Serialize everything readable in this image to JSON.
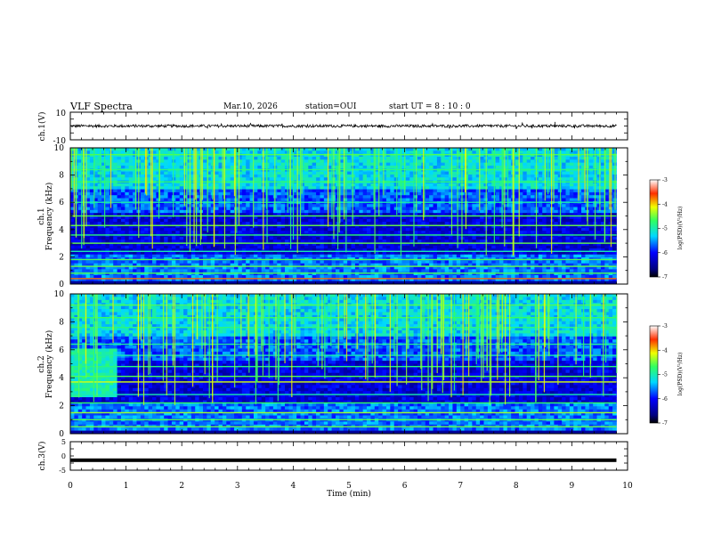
{
  "header": {
    "title": "VLF Spectra",
    "date": "Mar.10, 2026",
    "station": "station=OUI",
    "start": "start  UT  =   8  : 10 : 0"
  },
  "chart_data": [
    {
      "type": "line",
      "name": "ch1-waveform",
      "ylabel": "ch.1(V)",
      "ylim": [
        -10,
        10
      ],
      "yticks": [
        10,
        -10
      ],
      "xlim": [
        0,
        10
      ],
      "baseline": 0,
      "noise_amplitude": 1,
      "color": "#000000"
    },
    {
      "type": "heatmap",
      "name": "ch1-spectrogram",
      "ylabel": "ch.1",
      "ylabel2": "Frequency  (kHz)",
      "ylim": [
        0,
        10
      ],
      "yticks": [
        0,
        2,
        4,
        6,
        8,
        10
      ],
      "xlim": [
        0,
        10
      ],
      "colorbar": {
        "label": "log(PSD)(V²/Hz)",
        "range": [
          -7,
          -3
        ],
        "ticks": [
          -3,
          -4,
          -5,
          -6,
          -7
        ]
      }
    },
    {
      "type": "heatmap",
      "name": "ch2-spectrogram",
      "ylabel": "ch.2",
      "ylabel2": "Frequency  (kHz)",
      "ylim": [
        0,
        10
      ],
      "yticks": [
        0,
        2,
        4,
        6,
        8,
        10
      ],
      "xlim": [
        0,
        10
      ],
      "colorbar": {
        "label": "log(PSD)(V²/Hz)",
        "range": [
          -7,
          -3
        ],
        "ticks": [
          -3,
          -4,
          -5,
          -6,
          -7
        ]
      }
    },
    {
      "type": "line",
      "name": "ch3-waveform",
      "ylabel": "ch.3(V)",
      "ylim": [
        -5,
        5
      ],
      "yticks": [
        5,
        0,
        -5
      ],
      "xlim": [
        0,
        10
      ],
      "baseline": -1.5,
      "color": "#000000"
    }
  ],
  "xaxis": {
    "label": "Time  (min)",
    "range": [
      0,
      10
    ],
    "ticks": [
      0,
      1,
      2,
      3,
      4,
      5,
      6,
      7,
      8,
      9,
      10
    ],
    "data_end": 9.8
  }
}
